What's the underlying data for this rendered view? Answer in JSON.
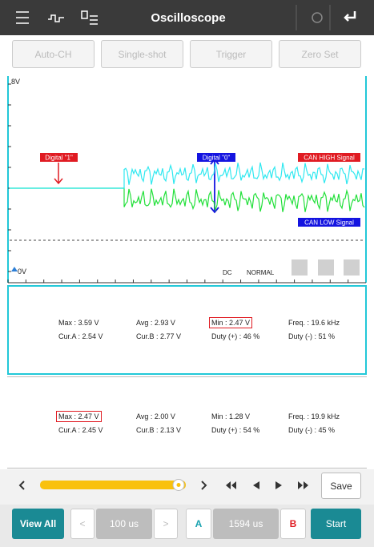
{
  "header": {
    "title": "Oscilloscope"
  },
  "toolbar": {
    "buttons": [
      "Auto-CH",
      "Single-shot",
      "Trigger",
      "Zero Set"
    ]
  },
  "scope": {
    "top_label": "8V",
    "bottom_label": "0V",
    "annotations": {
      "digital_one": "Digital \"1\"",
      "digital_zero": "Digital \"0\"",
      "can_high": "CAN HIGH Signal",
      "can_low": "CAN LOW Signal"
    },
    "coupling": "DC",
    "mode": "NORMAL"
  },
  "panels": [
    {
      "rows": [
        [
          "Max : 3.59 V",
          "Avg : 2.93 V",
          "Min : 2.47 V",
          "Freq. : 19.6 kHz"
        ],
        [
          "Cur.A : 2.54 V",
          "Cur.B : 2.77 V",
          "Duty (+) : 46 %",
          "Duty (-) : 51 %"
        ]
      ]
    },
    {
      "rows": [
        [
          "Max : 2.47 V",
          "Avg : 2.00 V",
          "Min : 1.28 V",
          "Freq. : 19.9 kHz"
        ],
        [
          "Cur.A : 2.45 V",
          "Cur.B : 2.13 V",
          "Duty (+) : 54 %",
          "Duty (-) : 45 %"
        ]
      ]
    }
  ],
  "controls": {
    "save": "Save"
  },
  "footer": {
    "view_all": "View All",
    "time_div": "100 us",
    "cursor_a": "A",
    "cursor_span": "1594 us",
    "cursor_b": "B",
    "start": "Start"
  }
}
